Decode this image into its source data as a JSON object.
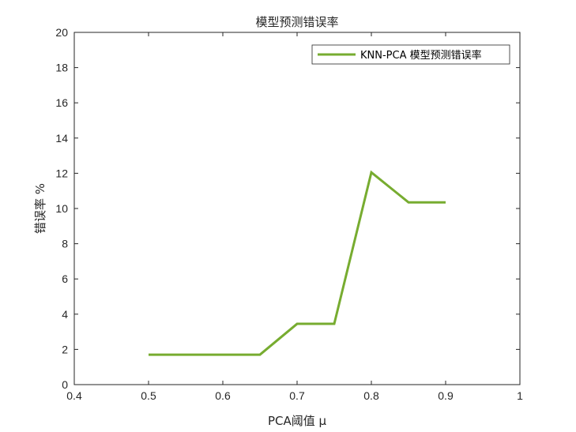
{
  "chart_data": {
    "type": "line",
    "title": "模型预测错误率",
    "xlabel": "PCA阈值 μ",
    "ylabel": "错误率 %",
    "xlim": [
      0.4,
      1.0
    ],
    "ylim": [
      0,
      20
    ],
    "x_ticks": [
      "0.4",
      "0.5",
      "0.6",
      "0.7",
      "0.8",
      "0.9",
      "1"
    ],
    "y_ticks": [
      "0",
      "2",
      "4",
      "6",
      "8",
      "10",
      "12",
      "14",
      "16",
      "18",
      "20"
    ],
    "grid": false,
    "legend_position": "top-right",
    "series": [
      {
        "name": "KNN-PCA 模型预测错误率",
        "color": "#77AC30",
        "x": [
          0.5,
          0.55,
          0.6,
          0.65,
          0.7,
          0.75,
          0.8,
          0.85,
          0.9
        ],
        "y": [
          1.7,
          1.7,
          1.7,
          1.7,
          3.45,
          3.45,
          12.05,
          10.35,
          10.35
        ]
      }
    ]
  }
}
